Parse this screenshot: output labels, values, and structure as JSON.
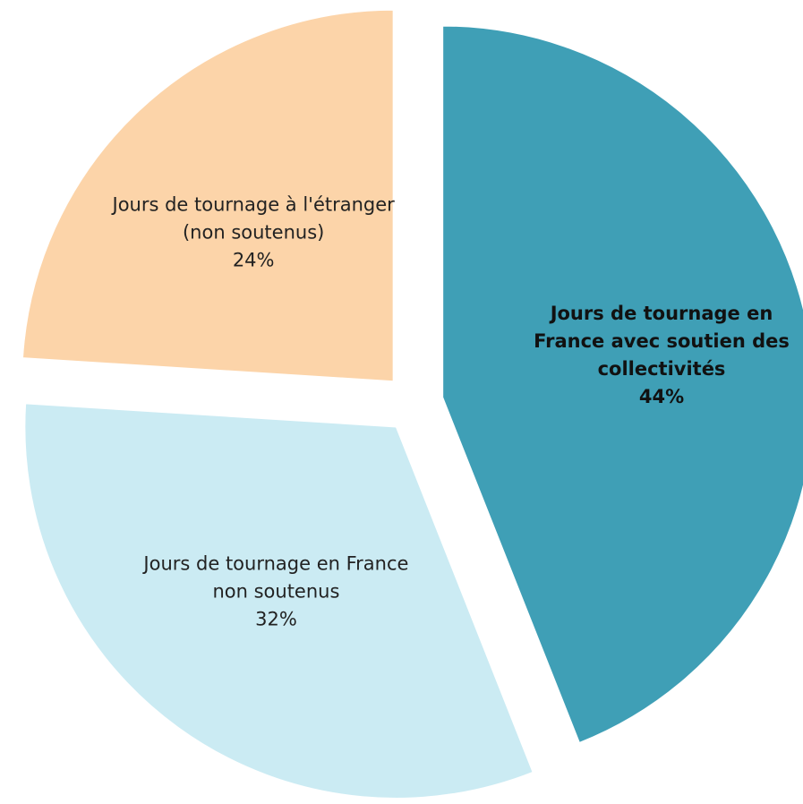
{
  "chart_data": {
    "type": "pie",
    "categories": [
      "Jours de tournage en France avec soutien des collectivités",
      "Jours de tournage en France non soutenus",
      "Jours de tournage à l'étranger (non soutenus)"
    ],
    "values": [
      44,
      32,
      24
    ],
    "value_labels": [
      "44%",
      "32%",
      "24%"
    ],
    "colors": [
      "#3f9fb6",
      "#cbebf3",
      "#fcd4a9"
    ],
    "exploded": true
  }
}
